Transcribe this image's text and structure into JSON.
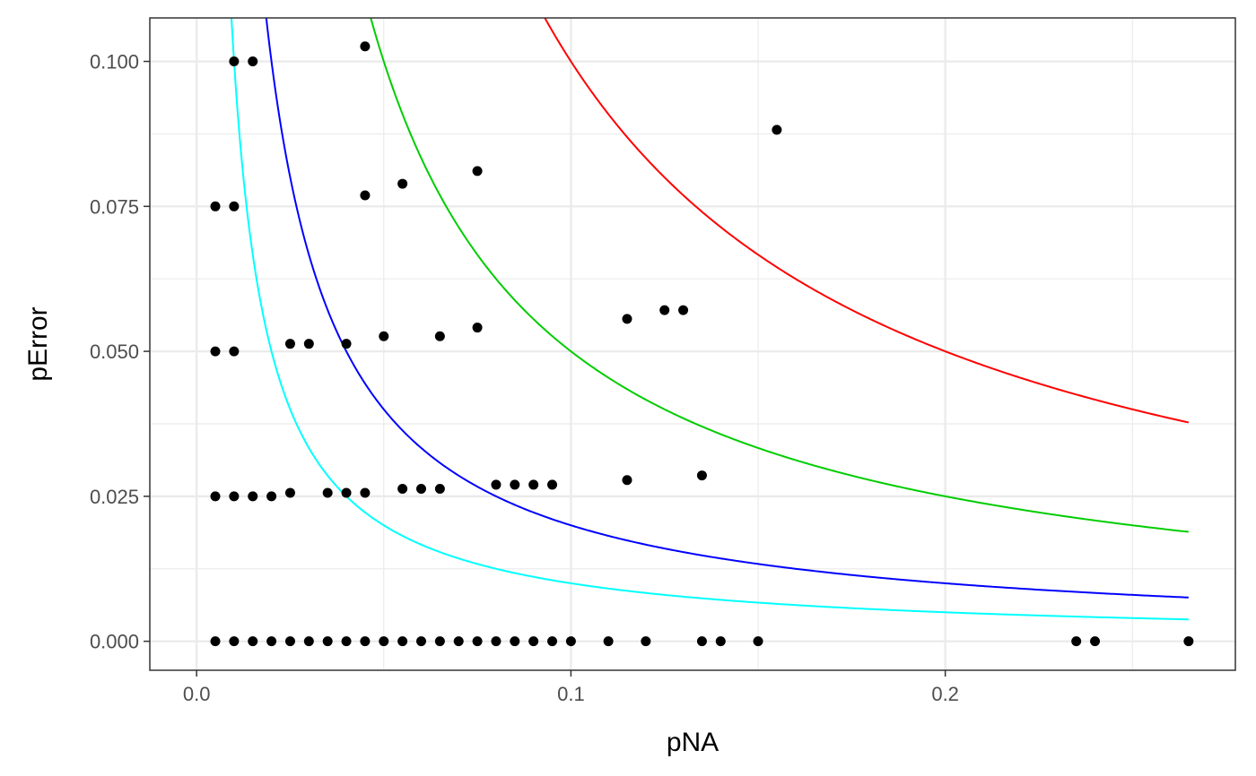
{
  "chart_data": {
    "type": "scatter",
    "title": "",
    "xlabel": "pNA",
    "ylabel": "pError",
    "xlim": [
      -0.0125,
      0.2775
    ],
    "ylim": [
      -0.005,
      0.1075
    ],
    "grid": true,
    "x_ticks": [
      {
        "value": 0.0,
        "label": "0.0"
      },
      {
        "value": 0.1,
        "label": "0.1"
      },
      {
        "value": 0.2,
        "label": "0.2"
      }
    ],
    "x_minor_ticks": [
      0.05,
      0.15,
      0.25
    ],
    "y_ticks": [
      {
        "value": 0.0,
        "label": "0.000"
      },
      {
        "value": 0.025,
        "label": "0.025"
      },
      {
        "value": 0.05,
        "label": "0.050"
      },
      {
        "value": 0.075,
        "label": "0.075"
      },
      {
        "value": 0.1,
        "label": "0.100"
      }
    ],
    "y_minor_ticks": [
      0.0125,
      0.0375,
      0.0625,
      0.0875
    ],
    "points": {
      "color": "#000000",
      "x": [
        0.005,
        0.01,
        0.015,
        0.02,
        0.025,
        0.03,
        0.035,
        0.04,
        0.045,
        0.05,
        0.055,
        0.06,
        0.065,
        0.07,
        0.075,
        0.08,
        0.085,
        0.09,
        0.095,
        0.1,
        0.11,
        0.12,
        0.135,
        0.14,
        0.15,
        0.235,
        0.24,
        0.265,
        0.005,
        0.01,
        0.015,
        0.02,
        0.025,
        0.035,
        0.04,
        0.045,
        0.055,
        0.06,
        0.065,
        0.08,
        0.085,
        0.09,
        0.095,
        0.115,
        0.135,
        0.005,
        0.01,
        0.025,
        0.03,
        0.04,
        0.05,
        0.065,
        0.075,
        0.115,
        0.125,
        0.13,
        0.005,
        0.01,
        0.045,
        0.055,
        0.075,
        0.155,
        0.01,
        0.015,
        0.045
      ],
      "y": [
        0,
        0,
        0,
        0,
        0,
        0,
        0,
        0,
        0,
        0,
        0,
        0,
        0,
        0,
        0,
        0,
        0,
        0,
        0,
        0,
        0,
        0,
        0,
        0,
        0,
        0,
        0,
        0,
        0.025,
        0.025,
        0.025,
        0.025,
        0.0256,
        0.0256,
        0.0256,
        0.0256,
        0.0263,
        0.0263,
        0.0263,
        0.027,
        0.027,
        0.027,
        0.027,
        0.0278,
        0.0286,
        0.05,
        0.05,
        0.0513,
        0.0513,
        0.0513,
        0.0526,
        0.0526,
        0.0541,
        0.0556,
        0.0571,
        0.0571,
        0.075,
        0.075,
        0.0769,
        0.0789,
        0.0811,
        0.0882,
        0.1,
        0.1,
        0.1026
      ]
    },
    "series": [
      {
        "color": "#00ffff",
        "k": 0.001
      },
      {
        "color": "#0000ff",
        "k": 0.002
      },
      {
        "color": "#00cd00",
        "k": 0.005
      },
      {
        "color": "#ff0000",
        "k": 0.01
      }
    ],
    "curve_formula": "pError = k / pNA",
    "curve_x_range": [
      0.001,
      0.265
    ]
  }
}
